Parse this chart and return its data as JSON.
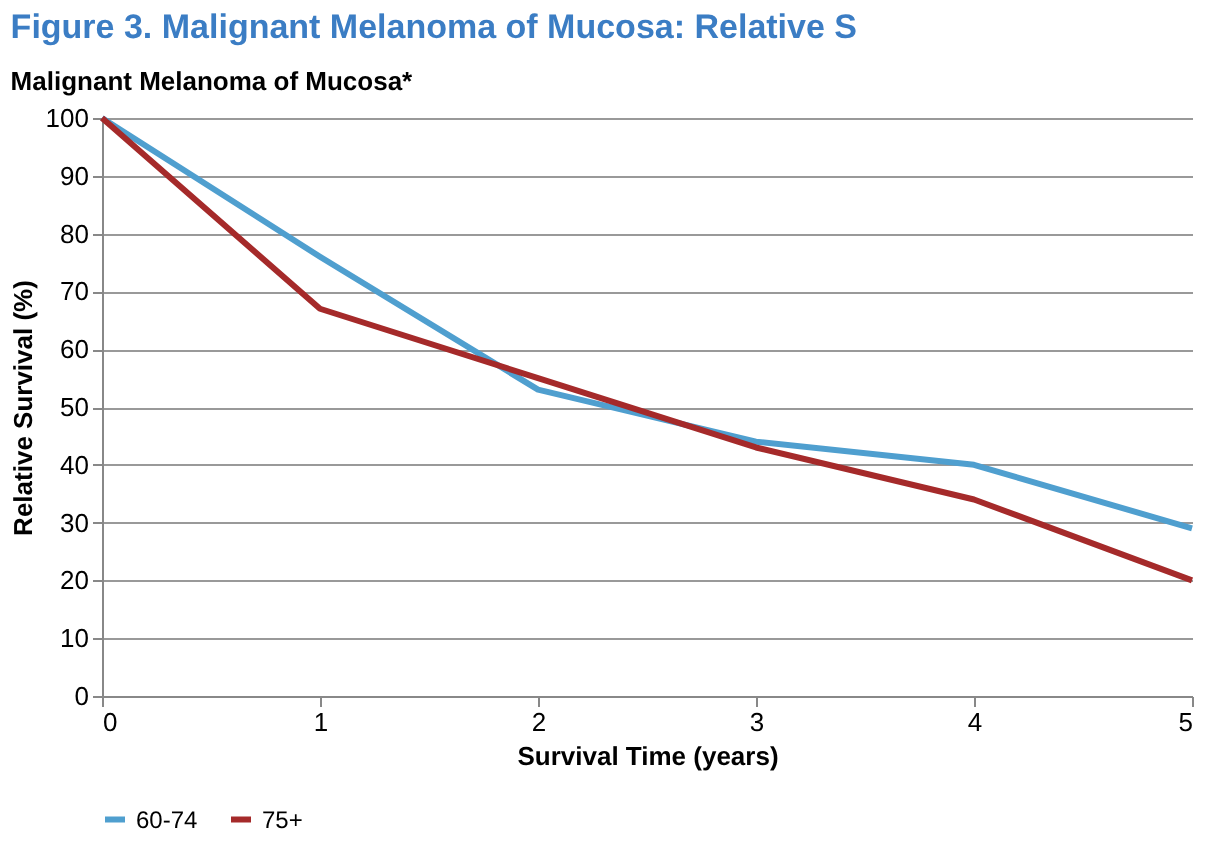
{
  "chart_data": {
    "type": "line",
    "title": "Figure 3. Malignant Melanoma of Mucosa: Relative S",
    "subtitle": "Malignant Melanoma of Mucosa*",
    "xlabel": "Survival Time (years)",
    "ylabel": "Relative Survival (%)",
    "x": [
      0,
      1,
      2,
      3,
      4,
      5
    ],
    "series": [
      {
        "name": "60-74",
        "color": "#4f9fcf",
        "values": [
          100,
          76,
          53,
          44,
          40,
          29
        ]
      },
      {
        "name": "75+",
        "color": "#a52a2a",
        "values": [
          100,
          67,
          55,
          43,
          34,
          20
        ]
      }
    ],
    "xlim": [
      0,
      5
    ],
    "xticks": [
      0,
      1,
      2,
      3,
      4,
      5
    ],
    "ylim": [
      0,
      100
    ],
    "yticks": [
      0,
      10,
      20,
      30,
      40,
      50,
      60,
      70,
      80,
      90,
      100
    ],
    "grid": "y",
    "legend": "bottom",
    "marker": "none",
    "line_style": "solid"
  }
}
